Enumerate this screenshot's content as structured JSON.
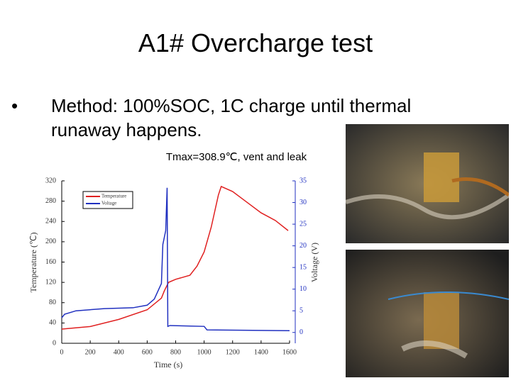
{
  "title": "A1# Overcharge test",
  "bullet": "Method: 100%SOC, 1C charge until thermal runaway happens.",
  "chart_data": {
    "type": "line",
    "title": "Tmax=308.9℃, vent and leak",
    "x_label": "Time (s)",
    "y_label": "Temperature (℃)",
    "y2_label": "Voltage (V)",
    "xlim": [
      0,
      1600
    ],
    "xticks": [
      0,
      200,
      400,
      600,
      800,
      1000,
      1200,
      1400,
      1600
    ],
    "ylim": [
      0,
      320
    ],
    "yticks": [
      0,
      40,
      80,
      120,
      160,
      200,
      240,
      280,
      320
    ],
    "y2lim": [
      -2.5,
      35
    ],
    "y2ticks": [
      0,
      5,
      10,
      15,
      20,
      25,
      30,
      35
    ],
    "legend": "top-left",
    "series": [
      {
        "name": "Temperature",
        "color": "#e02020",
        "x": [
          0,
          200,
          400,
          600,
          700,
          720,
          750,
          800,
          900,
          950,
          1000,
          1050,
          1100,
          1120,
          1200,
          1300,
          1400,
          1500,
          1590
        ],
        "values": [
          28,
          33,
          47,
          66,
          89,
          103,
          120,
          126,
          134,
          152,
          180,
          229,
          292,
          308.9,
          299,
          278,
          257,
          242,
          222
        ]
      },
      {
        "name": "Voltage",
        "color": "#2030c0",
        "axis": "y2",
        "x": [
          0,
          20,
          100,
          300,
          500,
          600,
          650,
          700,
          710,
          730,
          740,
          745,
          760,
          1000,
          1020,
          1600
        ],
        "values": [
          3.4,
          4.2,
          5.0,
          5.5,
          5.7,
          6.3,
          7.7,
          11.3,
          20.3,
          23.5,
          33.4,
          1.4,
          1.6,
          1.4,
          0.6,
          0.4
        ]
      }
    ]
  }
}
